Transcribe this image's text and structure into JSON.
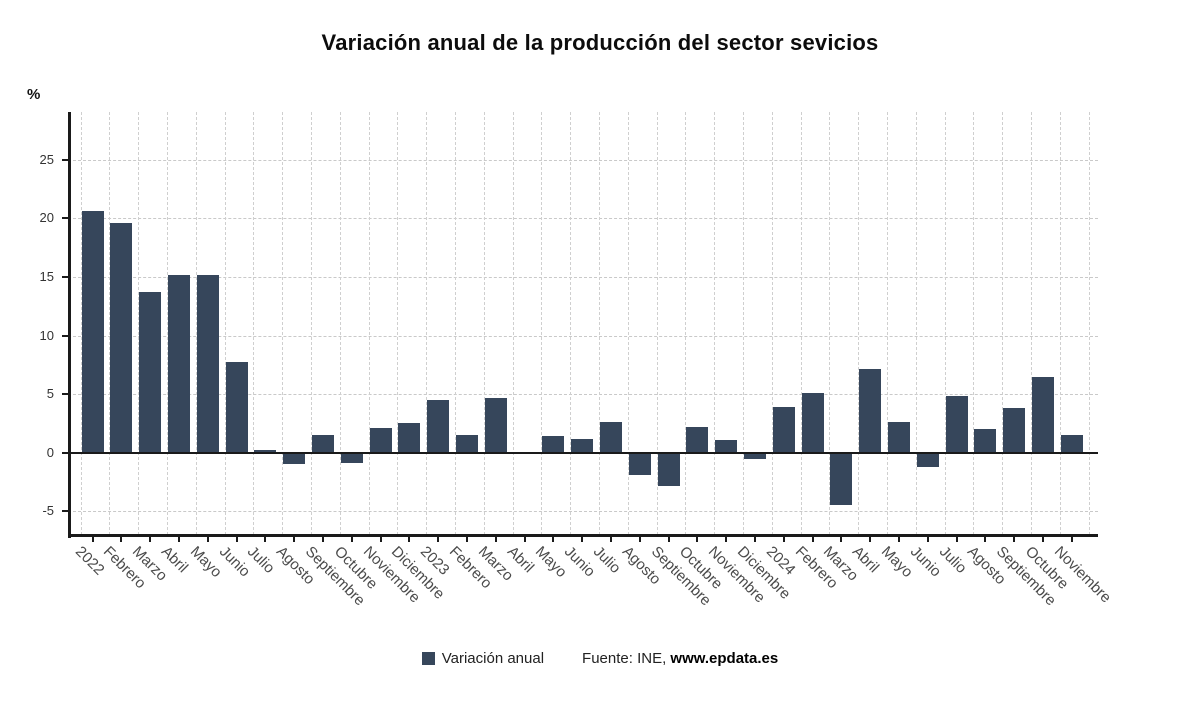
{
  "title": "Variación anual de la producción del sector sevicios",
  "y_axis": {
    "unit": "%",
    "ticks": [
      25,
      20,
      15,
      10,
      5,
      0,
      -5
    ]
  },
  "legend": {
    "label": "Variación anual",
    "source_prefix": "Fuente: INE, ",
    "source_site": "www.epdata.es"
  },
  "colors": {
    "bar": "#36465b",
    "axis": "#1a1a1a",
    "grid": "#cccccc",
    "x_label": "#4a4a4a",
    "y_label": "#333333"
  },
  "chart_data": {
    "type": "bar",
    "title": "Variación anual de la producción del sector sevicios",
    "xlabel": "",
    "ylabel": "%",
    "ylim": [
      -7,
      29
    ],
    "grid": true,
    "legend_position": "bottom",
    "categories": [
      "2022",
      "Febrero",
      "Marzo",
      "Abril",
      "Mayo",
      "Junio",
      "Julio",
      "Agosto",
      "Septiembre",
      "Octubre",
      "Noviembre",
      "Diciembre",
      "2023",
      "Febrero",
      "Marzo",
      "Abril",
      "Mayo",
      "Junio",
      "Julio",
      "Agosto",
      "Septiembre",
      "Octubre",
      "Noviembre",
      "Diciembre",
      "2024",
      "Febrero",
      "Marzo",
      "Abril",
      "Mayo",
      "Junio",
      "Julio",
      "Agosto",
      "Septiembre",
      "Octubre",
      "Noviembre"
    ],
    "series": [
      {
        "name": "Variación anual",
        "values": [
          20.6,
          19.6,
          13.7,
          15.2,
          15.2,
          7.7,
          0.2,
          -1.0,
          1.5,
          -0.9,
          2.1,
          2.5,
          4.5,
          1.5,
          4.7,
          0.1,
          1.4,
          1.2,
          2.6,
          -1.9,
          -2.8,
          2.2,
          1.1,
          -0.5,
          3.9,
          5.1,
          -4.5,
          7.1,
          2.6,
          -1.2,
          4.8,
          2.0,
          3.8,
          6.5,
          1.5
        ]
      }
    ]
  }
}
